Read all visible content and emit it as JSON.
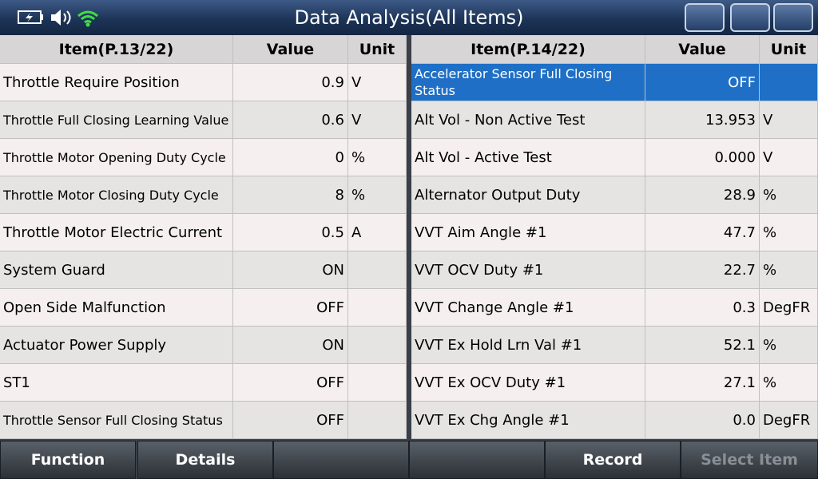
{
  "header": {
    "title": "Data Analysis(All Items)"
  },
  "tables": [
    {
      "columns": [
        "Item(P.13/22)",
        "Value",
        "Unit"
      ],
      "rows": [
        [
          "Throttle Require Position",
          "0.9",
          "V"
        ],
        [
          "Throttle Full Closing Learning Value",
          "0.6",
          "V"
        ],
        [
          "Throttle Motor Opening Duty Cycle",
          "0",
          "%"
        ],
        [
          "Throttle Motor Closing Duty Cycle",
          "8",
          "%"
        ],
        [
          "Throttle Motor Electric Current",
          "0.5",
          "A"
        ],
        [
          "System Guard",
          "ON"
        ],
        [
          "Open Side Malfunction",
          "OFF"
        ],
        [
          "Actuator Power Supply",
          "ON"
        ],
        [
          "ST1",
          "OFF"
        ],
        [
          "Throttle Sensor Full Closing Status",
          "OFF"
        ]
      ]
    },
    {
      "columns": [
        "Item(P.14/22)",
        "Value",
        "Unit"
      ],
      "rows": [
        [
          "Accelerator Sensor Full Closing Status",
          "OFF"
        ],
        [
          "Alt Vol - Non Active Test",
          "13.953",
          "V"
        ],
        [
          "Alt Vol - Active Test",
          "0.000",
          "V"
        ],
        [
          "Alternator Output Duty",
          "28.9",
          "%"
        ],
        [
          "VVT Aim Angle #1",
          "47.7",
          "%"
        ],
        [
          "VVT OCV Duty #1",
          "22.7",
          "%"
        ],
        [
          "VVT Change Angle #1",
          "0.3",
          "DegFR"
        ],
        [
          "VVT Ex Hold Lrn Val #1",
          "52.1",
          "%"
        ],
        [
          "VVT Ex OCV Duty #1",
          "27.1",
          "%"
        ],
        [
          "VVT Ex Chg Angle #1",
          "0.0",
          "DegFR"
        ]
      ]
    }
  ],
  "footer": {
    "buttons": [
      "Function",
      "Details",
      "Record",
      "Select Item"
    ]
  }
}
